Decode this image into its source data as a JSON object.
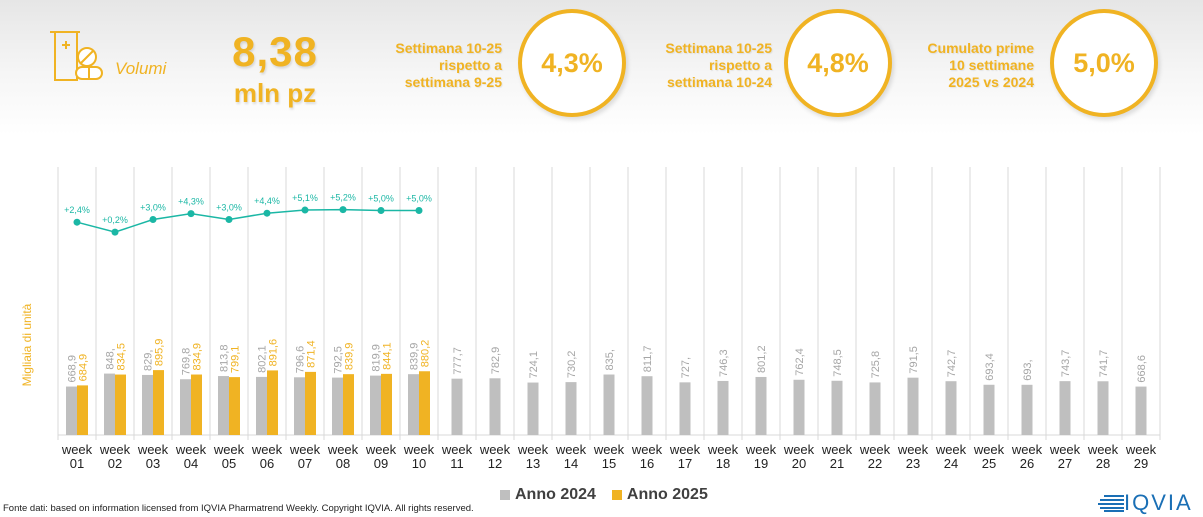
{
  "header": {
    "kpi_icon": "pill-bottle-icon",
    "kpi_label": "Volumi",
    "kpi_value": "8,38",
    "kpi_unit": "mln pz",
    "stats": [
      {
        "desc": [
          "Settimana 10-25",
          "rispetto a",
          "settimana 9-25"
        ],
        "value": "4,3%"
      },
      {
        "desc": [
          "Settimana 10-25",
          "rispetto a",
          "settimana 10-24"
        ],
        "value": "4,8%"
      },
      {
        "desc": [
          "Cumulato prime",
          "10 settimane",
          "2025 vs 2024"
        ],
        "value": "5,0%"
      }
    ]
  },
  "colors": {
    "accent": "#f0b323",
    "series_2024": "#bfbfbf",
    "series_2025": "#f0b323",
    "growth_line": "#1bb7a5",
    "grid": "#d9d9d9"
  },
  "chart_data": {
    "type": "bar",
    "title": "",
    "xlabel": "",
    "ylabel": "Migliaia di unità",
    "categories": [
      "week 01",
      "week 02",
      "week 03",
      "week 04",
      "week 05",
      "week 06",
      "week 07",
      "week 08",
      "week 09",
      "week 10",
      "week 11",
      "week 12",
      "week 13",
      "week 14",
      "week 15",
      "week 16",
      "week 17",
      "week 18",
      "week 19",
      "week 20",
      "week 21",
      "week 22",
      "week 23",
      "week 24",
      "week 25",
      "week 26",
      "week 27",
      "week 28",
      "week 29"
    ],
    "series": [
      {
        "name": "Anno 2024",
        "values": [
          668.9,
          848,
          829,
          769.8,
          813.8,
          802.1,
          796.6,
          792.5,
          819.9,
          839.9,
          777.7,
          782.9,
          724.1,
          730.2,
          835,
          811.7,
          727,
          746.3,
          801.2,
          762.4,
          748.5,
          725.8,
          791.5,
          742.7,
          693.4,
          693,
          743.7,
          741.7,
          668.6
        ],
        "labels": [
          "668,9",
          "848,",
          "829,",
          "769,8",
          "813,8",
          "802,1",
          "796,6",
          "792,5",
          "819,9",
          "839,9",
          "777,7",
          "782,9",
          "724,1",
          "730,2",
          "835,",
          "811,7",
          "727,",
          "746,3",
          "801,2",
          "762,4",
          "748,5",
          "725,8",
          "791,5",
          "742,7",
          "693,4",
          "693,",
          "743,7",
          "741,7",
          "668,6"
        ]
      },
      {
        "name": "Anno 2025",
        "values": [
          684.9,
          834.5,
          895.9,
          834.9,
          799.1,
          891.6,
          871.4,
          839.9,
          844.1,
          880.2
        ],
        "labels": [
          "684,9",
          "834,5",
          "895,9",
          "834,9",
          "799,1",
          "891,6",
          "871,4",
          "839,9",
          "844,1",
          "880,2"
        ]
      }
    ],
    "growth_line": {
      "name": "Variazione % 2025 vs 2024",
      "values": [
        2.4,
        0.2,
        3.0,
        4.3,
        3.0,
        4.4,
        5.1,
        5.2,
        5.0,
        5.0
      ],
      "labels": [
        "+2,4%",
        "+0,2%",
        "+3,0%",
        "+4,3%",
        "+3,0%",
        "+4,4%",
        "+5,1%",
        "+5,2%",
        "+5,0%",
        "+5,0%"
      ]
    },
    "ylim": [
      0,
      3700
    ],
    "growth_ylim": [
      0,
      6
    ],
    "grid": "vertical category separators",
    "legend": "bottom-center"
  },
  "footer": {
    "source": "Fonte dati: based on information licensed from IQVIA Pharmatrend Weekly. Copyright IQVIA. All rights reserved.",
    "logo_text": "IQVIA",
    "legend": [
      "Anno 2024",
      "Anno 2025"
    ]
  }
}
